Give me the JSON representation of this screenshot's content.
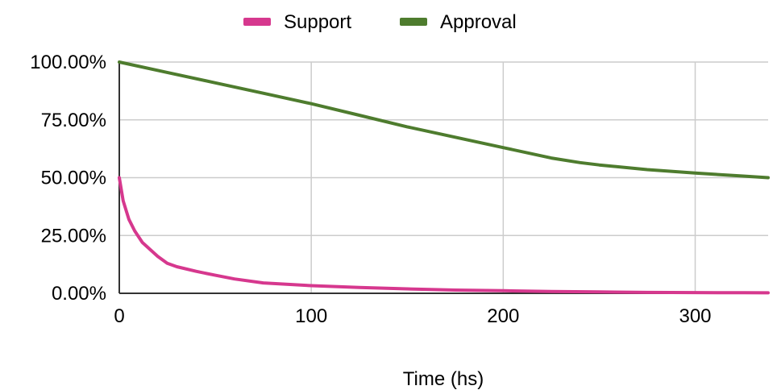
{
  "chart_data": {
    "type": "line",
    "title": "",
    "xlabel": "Time (hs)",
    "ylabel": "",
    "xlim": [
      0,
      338
    ],
    "ylim": [
      0,
      100
    ],
    "grid": true,
    "legend_position": "top-center",
    "x_ticks": [
      0,
      100,
      200,
      300
    ],
    "x_tick_labels": [
      "0",
      "100",
      "200",
      "300"
    ],
    "y_ticks": [
      0,
      25,
      50,
      75,
      100
    ],
    "y_tick_labels": [
      "0.00%",
      "25.00%",
      "50.00%",
      "75.00%",
      "100.00%"
    ],
    "series": [
      {
        "name": "Support",
        "color": "#d6388e",
        "x": [
          0,
          2,
          5,
          8,
          12,
          16,
          20,
          25,
          30,
          40,
          50,
          60,
          75,
          100,
          125,
          150,
          175,
          200,
          225,
          250,
          275,
          300,
          325,
          338
        ],
        "y": [
          50,
          40,
          32,
          27,
          22,
          19,
          16,
          13,
          11.5,
          9.5,
          7.8,
          6.2,
          4.5,
          3.3,
          2.5,
          1.9,
          1.4,
          1.1,
          0.8,
          0.6,
          0.4,
          0.3,
          0.25,
          0.2
        ]
      },
      {
        "name": "Approval",
        "color": "#4e7c2e",
        "x": [
          0,
          25,
          50,
          75,
          100,
          125,
          150,
          175,
          200,
          225,
          240,
          250,
          275,
          300,
          325,
          338
        ],
        "y": [
          100,
          95.5,
          91,
          86.5,
          82,
          77,
          72,
          67.5,
          63,
          58.5,
          56.5,
          55.5,
          53.5,
          52,
          50.7,
          50
        ]
      }
    ]
  }
}
